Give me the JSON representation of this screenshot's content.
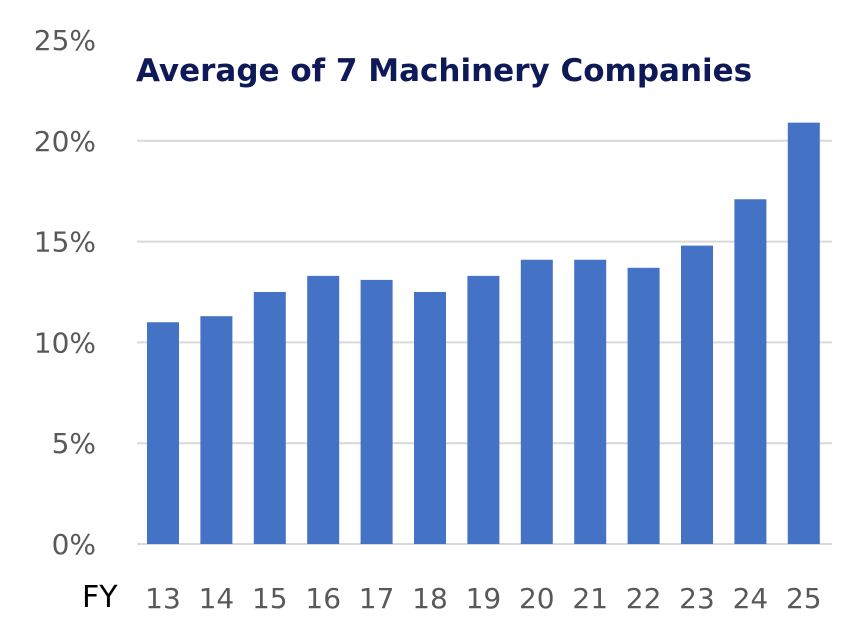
{
  "chart_data": {
    "type": "bar",
    "title": "Average of 7 Machinery Companies",
    "xlabel": "FY",
    "ylabel": "",
    "categories": [
      "13",
      "14",
      "15",
      "16",
      "17",
      "18",
      "19",
      "20",
      "21",
      "22",
      "23",
      "24",
      "25"
    ],
    "values": [
      11.0,
      11.3,
      12.5,
      13.3,
      13.1,
      12.5,
      13.3,
      14.1,
      14.1,
      13.7,
      14.8,
      17.1,
      20.9
    ],
    "value_format": "percent",
    "ylim": [
      0,
      25
    ],
    "yticks": [
      "0%",
      "5%",
      "10%",
      "15%",
      "20%",
      "25%"
    ],
    "grid": true,
    "legend": "none",
    "colors": {
      "bar": "#4472C4",
      "grid": "#D9D9D9",
      "title": "#0D1A57",
      "tick_text": "#595959",
      "axis_title": "#000000"
    }
  }
}
